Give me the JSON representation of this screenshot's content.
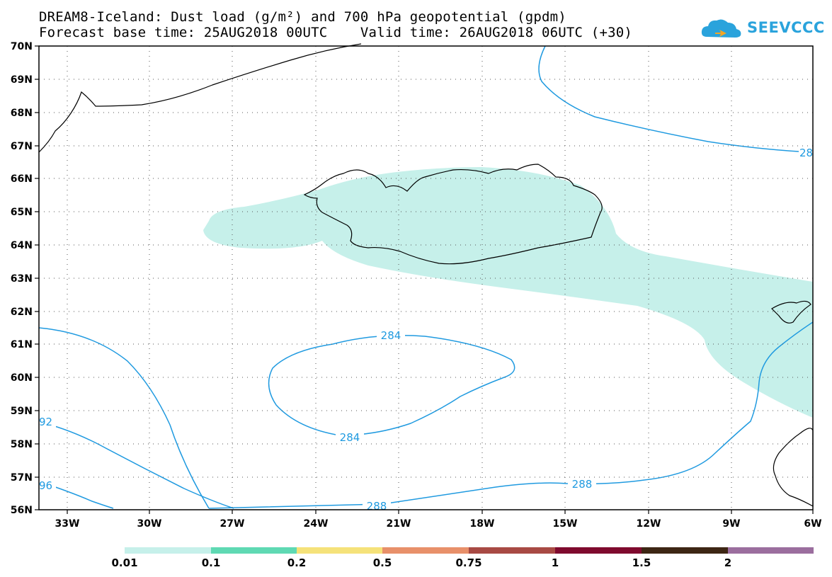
{
  "title_line1": "DREAM8-Iceland: Dust load (g/m²) and 700 hPa geopotential (gpdm)",
  "title_line2": "Forecast base time: 25AUG2018 00UTC    Valid time: 26AUG2018 06UTC (+30)",
  "logo": {
    "text": "SEEVCCC",
    "icon": "cloud-icon",
    "color": "#2aa3dc"
  },
  "map": {
    "lat_labels": [
      "70N",
      "69N",
      "68N",
      "67N",
      "66N",
      "65N",
      "64N",
      "63N",
      "62N",
      "61N",
      "60N",
      "59N",
      "58N",
      "57N",
      "56N"
    ],
    "lon_labels": [
      "33W",
      "30W",
      "27W",
      "24W",
      "21W",
      "18W",
      "15W",
      "12W",
      "9W",
      "6W"
    ],
    "dust_color": "#c6f0ea",
    "contour_color": "#1f9ae0",
    "contour_labels": [
      "284",
      "284",
      "288",
      "288",
      "92",
      "96",
      "28"
    ]
  },
  "colorbar": {
    "labels": [
      "0.01",
      "0.1",
      "0.2",
      "0.5",
      "0.75",
      "1",
      "1.5",
      "2"
    ],
    "colors": [
      "#c6f0ea",
      "#5fd9b3",
      "#f5e27a",
      "#e8906a",
      "#a84a44",
      "#7f0a2e",
      "#3d2614",
      "#9b6e9e"
    ]
  }
}
